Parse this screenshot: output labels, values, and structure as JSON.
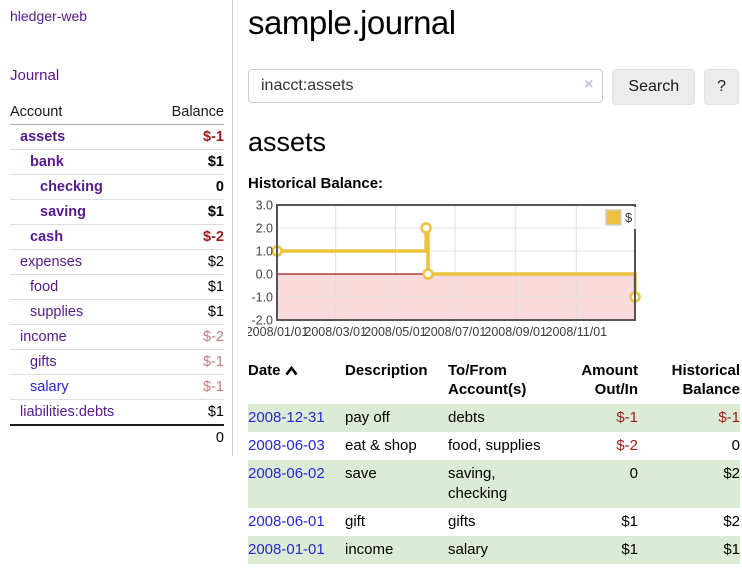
{
  "sidebar": {
    "brand": "hledger-web",
    "nav": {
      "journal": "Journal"
    },
    "accounts_table": {
      "col_account": "Account",
      "col_balance": "Balance",
      "rows": [
        {
          "name": "assets",
          "depth": 1,
          "bold": true,
          "blue": false,
          "balance": "$-1"
        },
        {
          "name": "bank",
          "depth": 2,
          "bold": true,
          "blue": false,
          "balance": "$1"
        },
        {
          "name": "checking",
          "depth": 3,
          "bold": true,
          "blue": false,
          "balance": "0"
        },
        {
          "name": "saving",
          "depth": 3,
          "bold": true,
          "blue": false,
          "balance": "$1"
        },
        {
          "name": "cash",
          "depth": 2,
          "bold": true,
          "blue": false,
          "balance": "$-2"
        },
        {
          "name": "expenses",
          "depth": 1,
          "bold": false,
          "blue": false,
          "balance": "$2"
        },
        {
          "name": "food",
          "depth": 2,
          "bold": false,
          "blue": false,
          "balance": "$1"
        },
        {
          "name": "supplies",
          "depth": 2,
          "bold": false,
          "blue": false,
          "balance": "$1"
        },
        {
          "name": "income",
          "depth": 1,
          "bold": false,
          "blue": false,
          "balance": "$-2"
        },
        {
          "name": "gifts",
          "depth": 2,
          "bold": false,
          "blue": false,
          "balance": "$-1"
        },
        {
          "name": "salary",
          "depth": 2,
          "bold": false,
          "blue": true,
          "balance": "$-1"
        },
        {
          "name": "liabilities:debts",
          "depth": 1,
          "bold": false,
          "blue": false,
          "balance": "$1"
        }
      ],
      "total": "0"
    }
  },
  "main": {
    "title": "sample.journal",
    "search": {
      "value": "inacct:assets",
      "clear_icon": "×",
      "search_label": "Search",
      "help_label": "?"
    },
    "account_heading": "assets",
    "chart_heading": "Historical Balance:"
  },
  "chart_data": {
    "type": "line",
    "title": "Historical Balance:",
    "step": true,
    "legend_label": "$",
    "legend_position": "top-right",
    "grid": true,
    "series": [
      {
        "name": "$",
        "color": "#edc240",
        "points": [
          {
            "date": "2008-01-01",
            "x": 0.0,
            "y": 1
          },
          {
            "date": "2008-06-01",
            "x": 0.4164,
            "y": 2
          },
          {
            "date": "2008-06-03",
            "x": 0.4219,
            "y": 0
          },
          {
            "date": "2008-12-31",
            "x": 1.0,
            "y": -1
          }
        ]
      }
    ],
    "ylim": [
      -2,
      3
    ],
    "yticks": [
      {
        "value": 3,
        "label": "3.0"
      },
      {
        "value": 2,
        "label": "2.0"
      },
      {
        "value": 1,
        "label": "1.0"
      },
      {
        "value": 0,
        "label": "0.0"
      },
      {
        "value": -1,
        "label": "-1.0"
      },
      {
        "value": -2,
        "label": "-2.0"
      }
    ],
    "xticks": [
      {
        "x": 0.0,
        "label": "2008/01/01"
      },
      {
        "x": 0.1639,
        "label": "2008/03/01"
      },
      {
        "x": 0.3306,
        "label": "2008/05/01"
      },
      {
        "x": 0.4973,
        "label": "2008/07/01"
      },
      {
        "x": 0.6667,
        "label": "2008/09/01"
      },
      {
        "x": 0.8361,
        "label": "2008/11/01"
      }
    ],
    "negative_region_fill": "#f9dbdb",
    "zero_line_color": "#9c1c1c",
    "border_color": "#545454",
    "gridline_color": "#e0e0e0"
  },
  "register": {
    "headers": {
      "date": "Date",
      "description": "Description",
      "accounts": "To/From Account(s)",
      "amount": "Amount Out/In",
      "balance": "Historical Balance"
    },
    "rows": [
      {
        "date": "2008-12-31",
        "description": "pay off",
        "accounts": "debts",
        "amount": "$-1",
        "balance": "$-1"
      },
      {
        "date": "2008-06-03",
        "description": "eat & shop",
        "accounts": "food, supplies",
        "amount": "$-2",
        "balance": "0"
      },
      {
        "date": "2008-06-02",
        "description": "save",
        "accounts": "saving, checking",
        "amount": "0",
        "balance": "$2"
      },
      {
        "date": "2008-06-01",
        "description": "gift",
        "accounts": "gifts",
        "amount": "$1",
        "balance": "$2"
      },
      {
        "date": "2008-01-01",
        "description": "income",
        "accounts": "salary",
        "amount": "$1",
        "balance": "$1"
      }
    ]
  }
}
